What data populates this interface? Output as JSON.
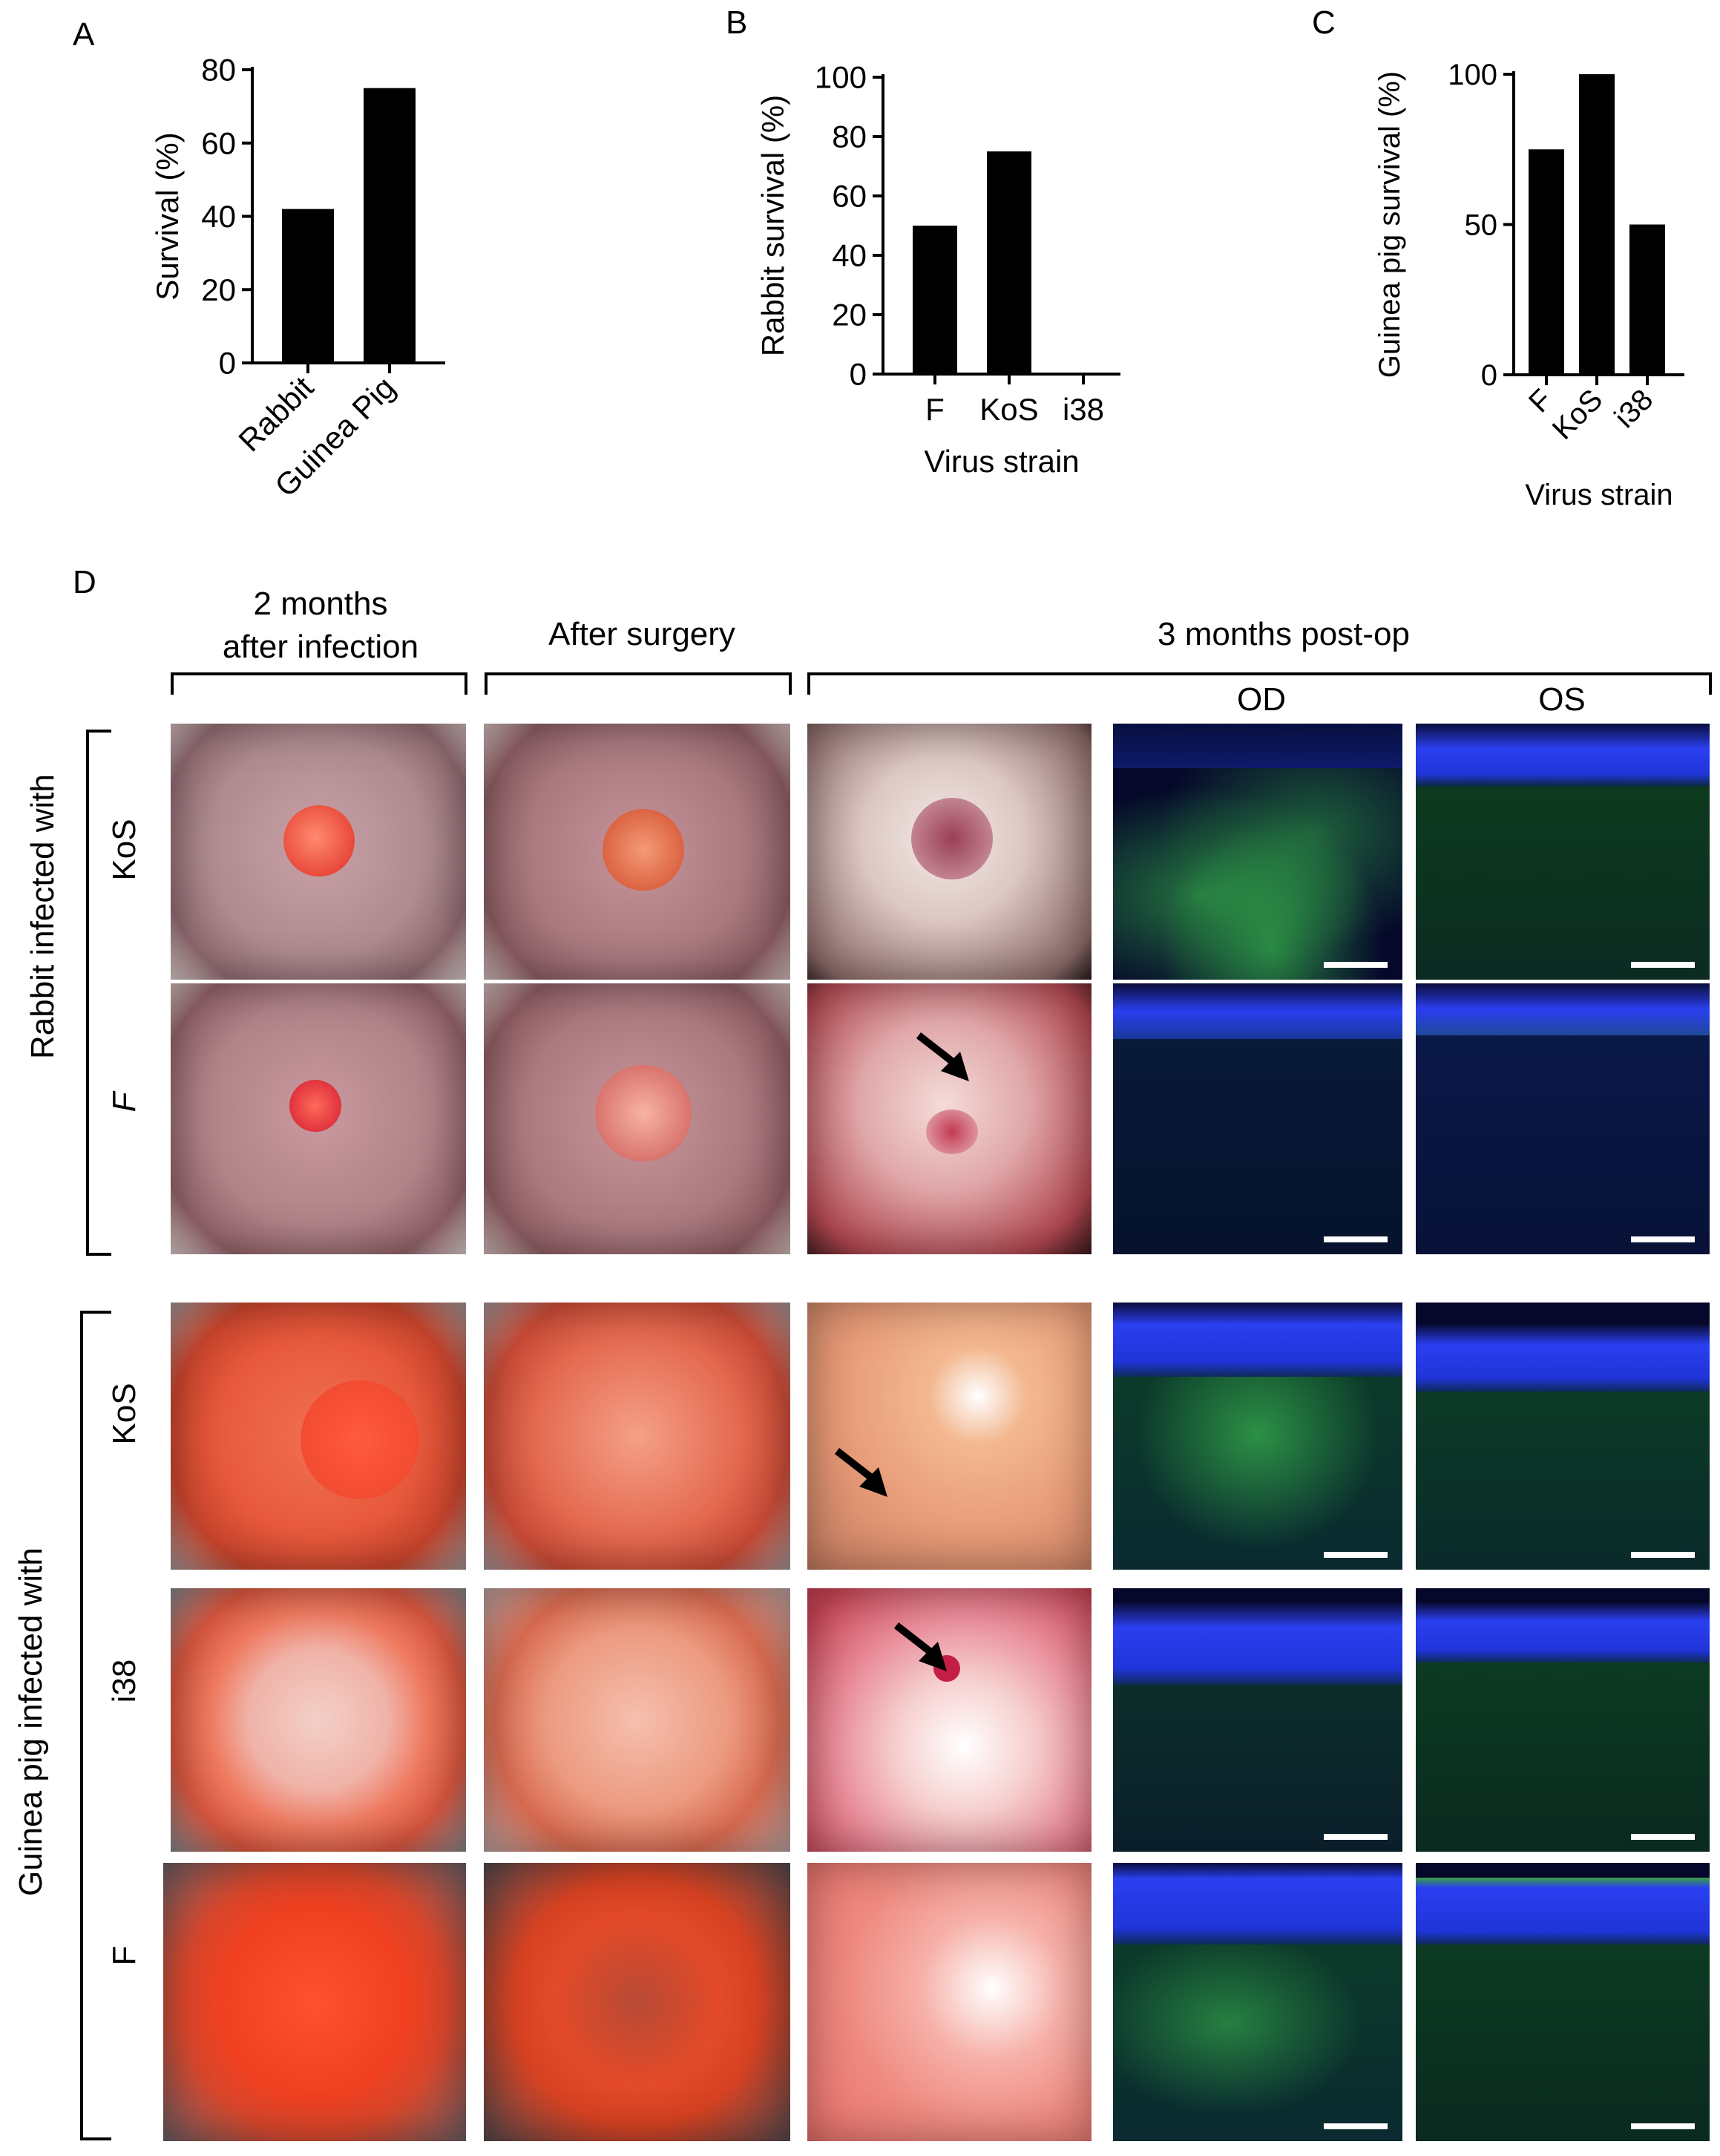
{
  "panel_letters": {
    "a": "A",
    "b": "B",
    "c": "C",
    "d": "D"
  },
  "chart_data": [
    {
      "type": "bar",
      "panel": "A",
      "categories": [
        "Rabbit",
        "Guinea Pig"
      ],
      "values": [
        42,
        75
      ],
      "ylabel": "Survival (%)",
      "xlabel": "",
      "ylim": [
        0,
        80
      ],
      "yticks": [
        0,
        20,
        40,
        60,
        80
      ],
      "bar_color": "#000000"
    },
    {
      "type": "bar",
      "panel": "B",
      "categories": [
        "F",
        "KoS",
        "i38"
      ],
      "values": [
        50,
        75,
        0
      ],
      "ylabel": "Rabbit survival (%)",
      "xlabel": "Virus strain",
      "ylim": [
        0,
        100
      ],
      "yticks": [
        0,
        20,
        40,
        60,
        80,
        100
      ],
      "bar_color": "#000000"
    },
    {
      "type": "bar",
      "panel": "C",
      "categories": [
        "F",
        "KoS",
        "i38"
      ],
      "values": [
        75,
        100,
        50
      ],
      "ylabel": "Guinea pig survival (%)",
      "xlabel": "Virus strain",
      "ylim": [
        0,
        100
      ],
      "yticks": [
        0,
        50,
        100
      ],
      "bar_color": "#000000"
    }
  ],
  "panel_d": {
    "column_headers": {
      "col1_line1": "2 months",
      "col1_line2": "after infection",
      "col2": "After surgery",
      "col3": "3 months post-op",
      "od": "OD",
      "os": "OS"
    },
    "groups": {
      "rabbit": "Rabbit infected with",
      "guinea_pig": "Guinea pig infected with"
    },
    "rows": {
      "rabbit_kos": "KoS",
      "rabbit_f": "F",
      "gp_kos": "KoS",
      "gp_i38": "i38",
      "gp_f": "F"
    },
    "colors": {
      "histology_background": "#05082a",
      "nuclei_blue": "#1f3cff",
      "stroma_green": "#1e7a2a",
      "scale_bar": "#ffffff",
      "rabbit_eye_tint": "#b98a8f",
      "guinea_pig_eye_tint": "#e2553a"
    }
  }
}
